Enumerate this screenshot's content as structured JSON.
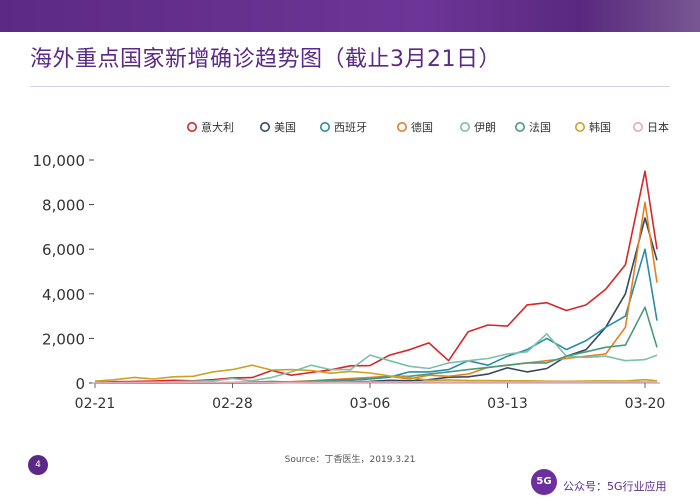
{
  "page": {
    "title": "海外重点国家新增确诊趋势图（截止3月21日）",
    "source": "Source：丁香医生，2019.3.21",
    "page_number": "4",
    "brand_logo": "5G",
    "brand_text": "公众号：5G行业应用"
  },
  "colors": {
    "title": "#5a2a86",
    "top_bar": "#5c2a84"
  },
  "chart_data": {
    "type": "line",
    "title": "",
    "xlabel": "",
    "ylabel": "",
    "x_ticks": [
      "02-21",
      "02-28",
      "03-06",
      "03-13",
      "03-20"
    ],
    "x": [
      "02-21",
      "02-22",
      "02-23",
      "02-24",
      "02-25",
      "02-26",
      "02-27",
      "02-28",
      "02-29",
      "03-01",
      "03-02",
      "03-03",
      "03-04",
      "03-05",
      "03-06",
      "03-07",
      "03-08",
      "03-09",
      "03-10",
      "03-11",
      "03-12",
      "03-13",
      "03-14",
      "03-15",
      "03-16",
      "03-17",
      "03-18",
      "03-19",
      "03-20",
      "03-21"
    ],
    "y_ticks": [
      "0",
      "2,000",
      "4,000",
      "6,000",
      "8,000",
      "10,000"
    ],
    "ylim": [
      0,
      10000
    ],
    "legend_position": "top",
    "grid": false,
    "series": [
      {
        "name": "意大利",
        "color": "#d62728",
        "values": [
          15,
          60,
          70,
          90,
          120,
          100,
          150,
          230,
          240,
          560,
          350,
          470,
          590,
          770,
          780,
          1250,
          1490,
          1800,
          1000,
          2300,
          2600,
          2550,
          3500,
          3600,
          3250,
          3500,
          4200,
          5300,
          9500,
          6000
        ]
      },
      {
        "name": "美国",
        "color": "#34495e",
        "values": [
          0,
          0,
          0,
          0,
          0,
          0,
          0,
          0,
          5,
          5,
          20,
          20,
          35,
          50,
          70,
          120,
          100,
          150,
          260,
          280,
          400,
          680,
          500,
          650,
          1200,
          1500,
          2500,
          4000,
          7400,
          5500
        ]
      },
      {
        "name": "西班牙",
        "color": "#2a8ca8",
        "values": [
          0,
          0,
          0,
          0,
          0,
          0,
          10,
          15,
          20,
          20,
          50,
          80,
          100,
          120,
          180,
          260,
          500,
          500,
          600,
          1000,
          800,
          1200,
          1500,
          2000,
          1500,
          1900,
          2500,
          3000,
          6000,
          2800
        ]
      },
      {
        "name": "德国",
        "color": "#e67e22",
        "values": [
          0,
          0,
          0,
          0,
          0,
          0,
          20,
          30,
          40,
          50,
          60,
          100,
          150,
          200,
          250,
          300,
          180,
          350,
          300,
          400,
          700,
          800,
          900,
          1000,
          1100,
          1200,
          1300,
          2500,
          8100,
          4500
        ]
      },
      {
        "name": "伊朗",
        "color": "#7dbfa8",
        "values": [
          10,
          20,
          30,
          40,
          60,
          80,
          100,
          200,
          100,
          250,
          500,
          800,
          600,
          600,
          1250,
          1000,
          750,
          650,
          900,
          1000,
          1100,
          1300,
          1400,
          2200,
          1200,
          1150,
          1200,
          1000,
          1050,
          1250
        ]
      },
      {
        "name": "法国",
        "color": "#4a9a78",
        "values": [
          0,
          0,
          0,
          0,
          2,
          5,
          15,
          30,
          40,
          70,
          40,
          80,
          130,
          150,
          200,
          300,
          300,
          400,
          500,
          600,
          700,
          800,
          900,
          900,
          1200,
          1400,
          1600,
          1700,
          3400,
          1600
        ]
      },
      {
        "name": "韩国",
        "color": "#c9a227",
        "values": [
          80,
          150,
          250,
          180,
          280,
          300,
          500,
          600,
          800,
          580,
          600,
          560,
          440,
          520,
          450,
          320,
          240,
          120,
          140,
          110,
          110,
          100,
          100,
          80,
          75,
          85,
          100,
          90,
          150,
          100
        ]
      },
      {
        "name": "日本",
        "color": "#e8a7b7",
        "values": [
          5,
          10,
          15,
          20,
          15,
          20,
          25,
          30,
          20,
          15,
          20,
          25,
          30,
          35,
          40,
          45,
          50,
          55,
          40,
          50,
          45,
          40,
          45,
          50,
          40,
          50,
          60,
          55,
          50,
          55
        ]
      }
    ]
  }
}
